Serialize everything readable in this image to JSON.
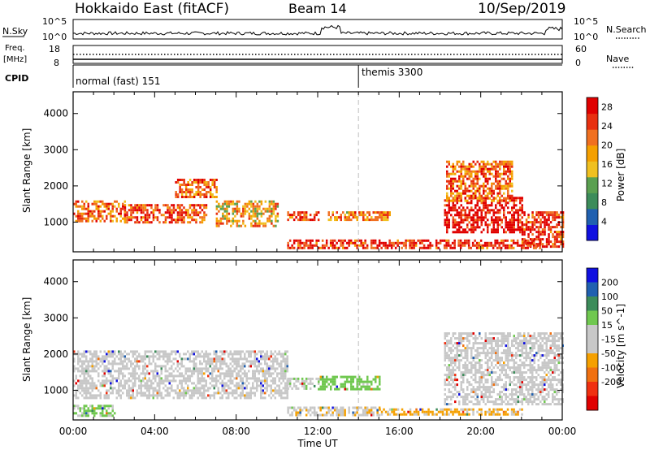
{
  "header": {
    "station": "Hokkaido East (fitACF)",
    "beam": "Beam 14",
    "date": "10/Sep/2019"
  },
  "upper_panels": {
    "nsky_label": "N.Sky",
    "nsky_top_tick": "10^5",
    "nsky_bottom_tick": "10^0",
    "nsearch_label": "N.Search",
    "nsearch_top_tick": "10^5",
    "nsearch_bottom_tick": "10^0",
    "freq_label_line1": "Freq.",
    "freq_label_line2": "[MHz]",
    "freq_top_tick": "18",
    "freq_bottom_tick": "8",
    "nave_label": "Nave",
    "nave_top_tick": "60",
    "nave_bottom_tick": "0",
    "cpid_label": "CPID",
    "cpid_segments": [
      {
        "label": "normal (fast) 151",
        "start_hour": 0
      },
      {
        "label": "themis 3300",
        "start_hour": 14
      }
    ]
  },
  "x_axis": {
    "label": "Time UT",
    "ticks": [
      "00:00",
      "04:00",
      "08:00",
      "12:00",
      "16:00",
      "20:00",
      "00:00"
    ]
  },
  "colors": {
    "power_scale": [
      "#1010e0",
      "#2060b0",
      "#3c8c5a",
      "#5aa050",
      "#f0c020",
      "#f5a000",
      "#f07020",
      "#e83010",
      "#e00000"
    ],
    "velocity_scale": [
      "#e00000",
      "#f03010",
      "#f07010",
      "#f5a000",
      "#c8c8c8",
      "#c8c8c8",
      "#70c850",
      "#3c8c5a",
      "#2060b0",
      "#1010e0"
    ],
    "ground_scatter": "#bebebe"
  },
  "chart_data": [
    {
      "type": "heatmap",
      "title": "",
      "xlabel": "Time UT",
      "ylabel": "Slant Range [km]",
      "xlim": [
        0,
        24
      ],
      "ylim": [
        180,
        4600
      ],
      "yticks": [
        1000,
        2000,
        3000,
        4000
      ],
      "colorbar": {
        "label": "Power [dB]",
        "ticks": [
          "4",
          "8",
          "12",
          "16",
          "20",
          "24",
          "28"
        ],
        "range": [
          0,
          30
        ]
      },
      "echo_regions": [
        {
          "hours": [
            0.0,
            2.5
          ],
          "range_km": [
            1000,
            1600
          ],
          "power_db": 22
        },
        {
          "hours": [
            2.5,
            6.5
          ],
          "range_km": [
            1000,
            1500
          ],
          "power_db": 24
        },
        {
          "hours": [
            5.0,
            7.0
          ],
          "range_km": [
            1700,
            2200
          ],
          "power_db": 22
        },
        {
          "hours": [
            7.0,
            10.0
          ],
          "range_km": [
            900,
            1600
          ],
          "power_db": 18
        },
        {
          "hours": [
            10.5,
            12.0
          ],
          "range_km": [
            1050,
            1300
          ],
          "power_db": 26
        },
        {
          "hours": [
            12.5,
            15.5
          ],
          "range_km": [
            1050,
            1300
          ],
          "power_db": 20
        },
        {
          "hours": [
            18.2,
            22.0
          ],
          "range_km": [
            700,
            1700
          ],
          "power_db": 28
        },
        {
          "hours": [
            18.3,
            21.5
          ],
          "range_km": [
            1600,
            2700
          ],
          "power_db": 22
        },
        {
          "hours": [
            22.0,
            24.0
          ],
          "range_km": [
            300,
            1300
          ],
          "power_db": 26
        },
        {
          "hours": [
            10.5,
            23.0
          ],
          "range_km": [
            300,
            520
          ],
          "power_db": 26
        }
      ]
    },
    {
      "type": "heatmap",
      "title": "",
      "xlabel": "Time UT",
      "ylabel": "Slant Range [km]",
      "xlim": [
        0,
        24
      ],
      "ylim": [
        180,
        4600
      ],
      "yticks": [
        1000,
        2000,
        3000,
        4000
      ],
      "colorbar": {
        "label": "Velocity [m s^-1]",
        "ticks": [
          "200",
          "100",
          "50",
          "15",
          "-15",
          "-50",
          "-100",
          "-200"
        ],
        "range": [
          -250,
          250
        ]
      },
      "echo_regions": [
        {
          "hours": [
            0.0,
            10.5
          ],
          "range_km": [
            800,
            2100
          ],
          "velocity": 0
        },
        {
          "hours": [
            0.0,
            2.0
          ],
          "range_km": [
            300,
            600
          ],
          "velocity": 60
        },
        {
          "hours": [
            10.5,
            12.0
          ],
          "range_km": [
            1050,
            1350
          ],
          "velocity": 40
        },
        {
          "hours": [
            12.0,
            15.0
          ],
          "range_km": [
            1000,
            1400
          ],
          "velocity": 80
        },
        {
          "hours": [
            10.5,
            15.0
          ],
          "range_km": [
            300,
            550
          ],
          "velocity": -40
        },
        {
          "hours": [
            15.0,
            22.0
          ],
          "range_km": [
            300,
            500
          ],
          "velocity": -60
        },
        {
          "hours": [
            18.2,
            24.0
          ],
          "range_km": [
            600,
            2600
          ],
          "velocity": 0
        }
      ]
    }
  ]
}
